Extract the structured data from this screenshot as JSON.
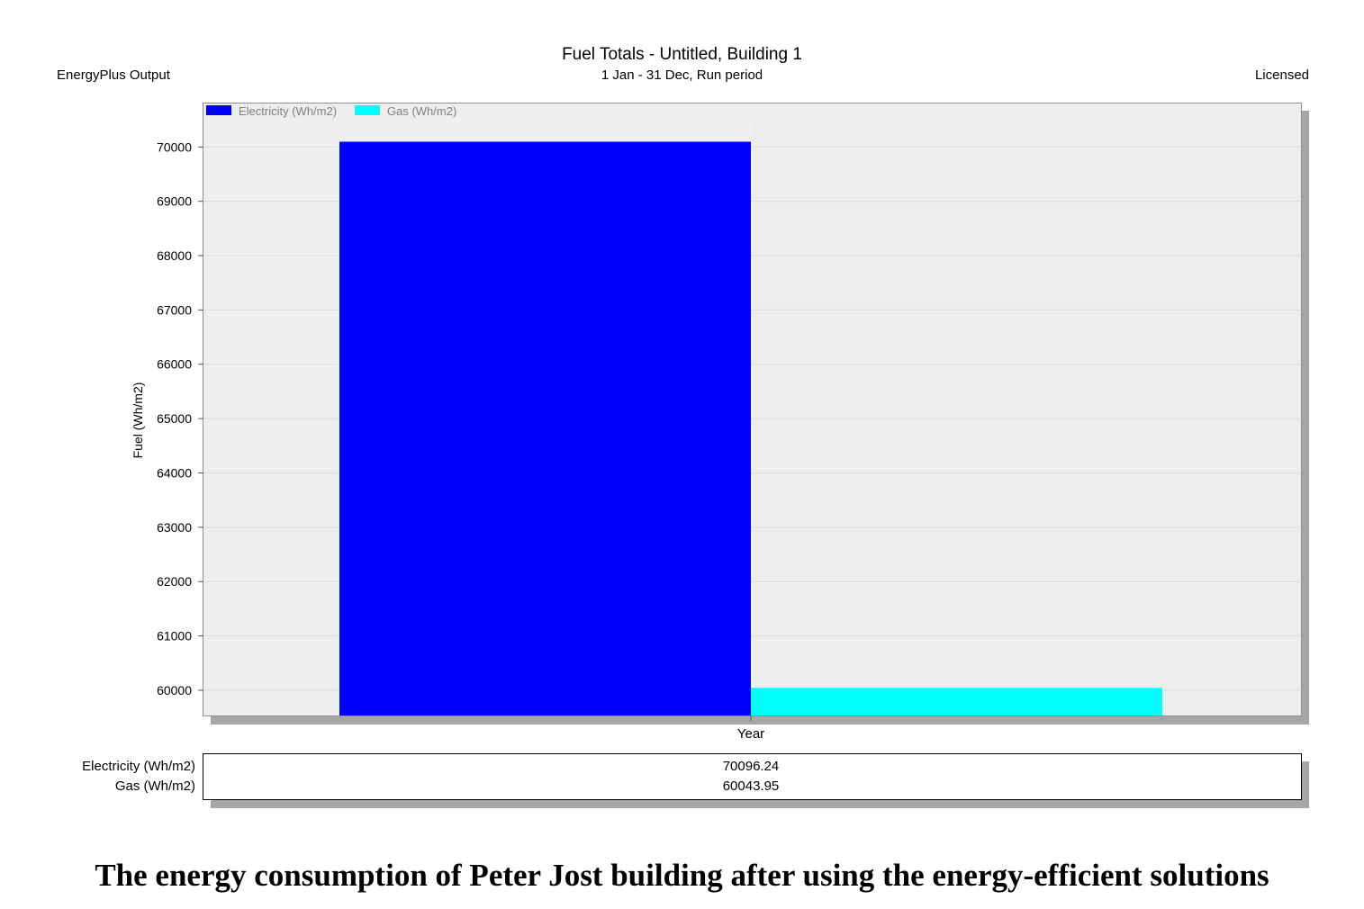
{
  "header": {
    "title": "Fuel Totals - Untitled, Building 1",
    "subtitle": "1 Jan - 31 Dec, Run period",
    "left_note": "EnergyPlus Output",
    "right_note": "Licensed"
  },
  "chart_data": {
    "type": "bar",
    "title": "Fuel Totals - Untitled, Building 1",
    "subtitle": "1 Jan - 31 Dec, Run period",
    "categories": [
      "Year"
    ],
    "series": [
      {
        "name": "Electricity (Wh/m2)",
        "values": [
          70096.24
        ],
        "color": "#0000ff"
      },
      {
        "name": "Gas (Wh/m2)",
        "values": [
          60043.95
        ],
        "color": "#00ffff"
      }
    ],
    "ylabel": "Fuel (Wh/m2)",
    "xlabel": "",
    "ylim": [
      59535,
      70800
    ],
    "yticks": [
      60000,
      61000,
      62000,
      63000,
      64000,
      65000,
      66000,
      67000,
      68000,
      69000,
      70000
    ],
    "grid": true,
    "legend": "top-left"
  },
  "table": {
    "rows": [
      {
        "label": "Electricity (Wh/m2)",
        "value": "70096.24"
      },
      {
        "label": "Gas (Wh/m2)",
        "value": "60043.95"
      }
    ]
  },
  "caption": "The energy consumption of Peter Jost building after using the energy-efficient solutions"
}
